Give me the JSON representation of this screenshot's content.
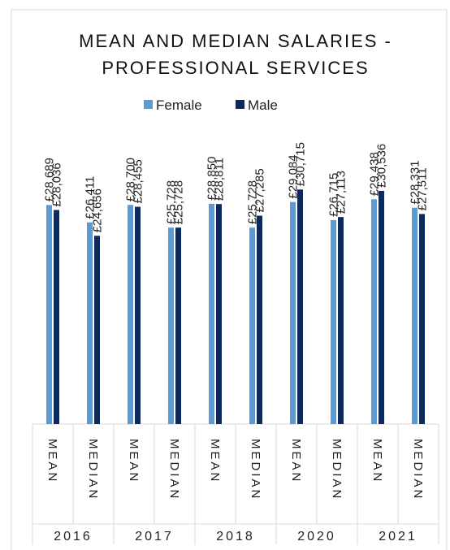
{
  "chart_data": {
    "type": "bar",
    "title": "MEAN AND MEDIAN SALARIES - PROFESSIONAL SERVICES",
    "groups": [
      "2016",
      "2017",
      "2018",
      "2020",
      "2021"
    ],
    "categories": [
      "MEAN",
      "MEDIAN",
      "MEAN",
      "MEDIAN",
      "MEAN",
      "MEDIAN",
      "MEAN",
      "MEDIAN",
      "MEAN",
      "MEDIAN"
    ],
    "series": [
      {
        "name": "Female",
        "color": "#5b9bd5",
        "values": [
          28689,
          26411,
          28700,
          25728,
          28850,
          25728,
          29084,
          26715,
          29438,
          28331
        ],
        "value_labels": [
          "£28,689",
          "£26,411",
          "£28,700",
          "£25,728",
          "£28,850",
          "£25,728",
          "£29,084",
          "£26,715",
          "£29,438",
          "£28,331"
        ]
      },
      {
        "name": "Male",
        "color": "#0e2a5c",
        "values": [
          28036,
          24656,
          28455,
          25728,
          28811,
          27285,
          30715,
          27113,
          30536,
          27511
        ],
        "value_labels": [
          "£28,036",
          "£24,656",
          "£28,455",
          "£25,728",
          "£28,811",
          "£27,285",
          "£30,715",
          "£27,113",
          "£30,536",
          "£27,511"
        ]
      }
    ],
    "ylim": [
      0,
      35000
    ],
    "legend": "top"
  }
}
